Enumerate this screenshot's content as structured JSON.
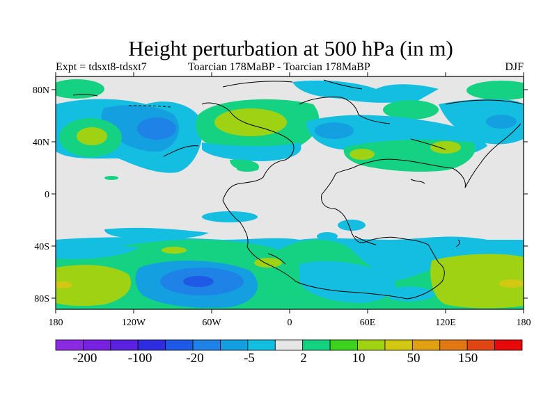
{
  "header": {
    "title": "Height perturbation at 500 hPa (in m)",
    "left": "Expt = tdsxt8-tdsxt7",
    "center": "Toarcian 178MaBP - Toarcian 178MaBP",
    "right": "DJF"
  },
  "axes": {
    "lon_labels": [
      "180",
      "120W",
      "60W",
      "0",
      "60E",
      "120E",
      "180"
    ],
    "lat_labels": [
      "80N",
      "40N",
      "0",
      "40S",
      "80S"
    ]
  },
  "colorbar": {
    "colors": [
      "#8a2be2",
      "#7822e0",
      "#5a22e0",
      "#2e2ee0",
      "#1e5ae6",
      "#1e82e6",
      "#14a0e0",
      "#14bee0",
      "#e6e6e6",
      "#14d282",
      "#3cd21e",
      "#a0d214",
      "#d2c814",
      "#e0a014",
      "#e07814",
      "#e04614",
      "#e60a0a"
    ],
    "labels": [
      "-200",
      "-100",
      "-20",
      "-5",
      "2",
      "10",
      "50",
      "150"
    ]
  }
}
